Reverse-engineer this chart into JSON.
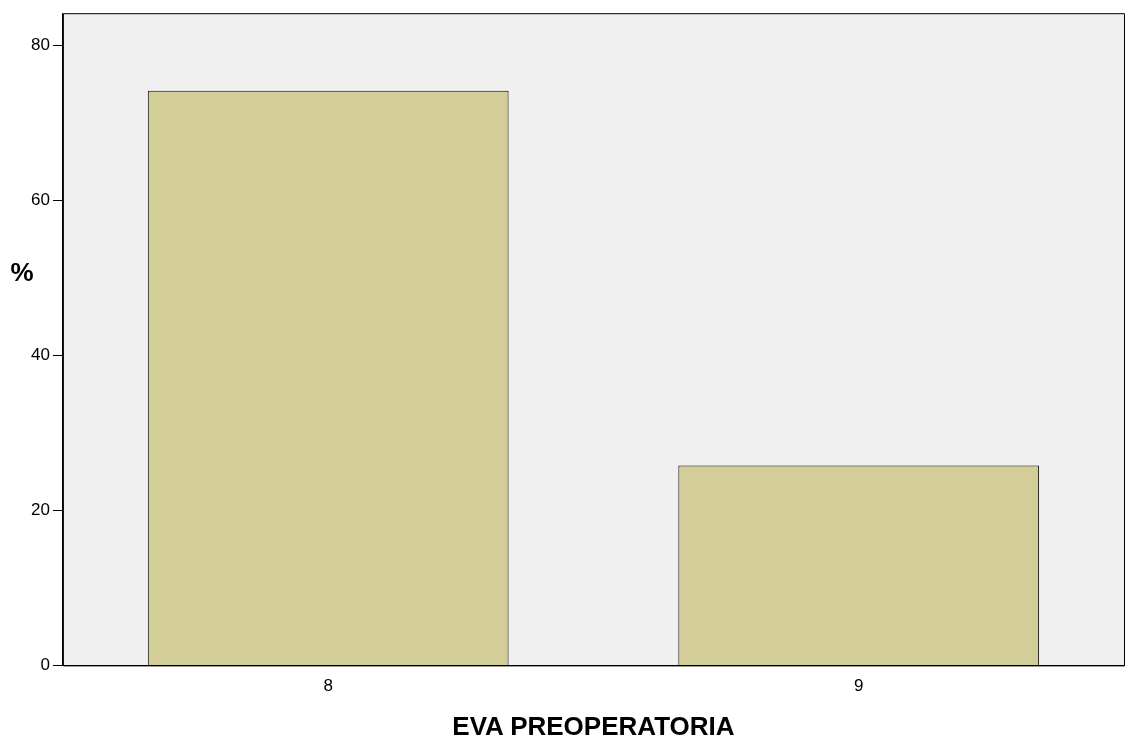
{
  "chart_data": {
    "type": "bar",
    "xlabel": "EVA PREOPERATORIA",
    "ylabel": "%",
    "categories": [
      "8",
      "9"
    ],
    "values": [
      74.2,
      25.8
    ],
    "color": "#d3ce97",
    "ylim": [
      0,
      84.2
    ],
    "yticks": [
      0,
      20,
      40,
      60,
      80
    ],
    "grid": false,
    "legend": false
  }
}
